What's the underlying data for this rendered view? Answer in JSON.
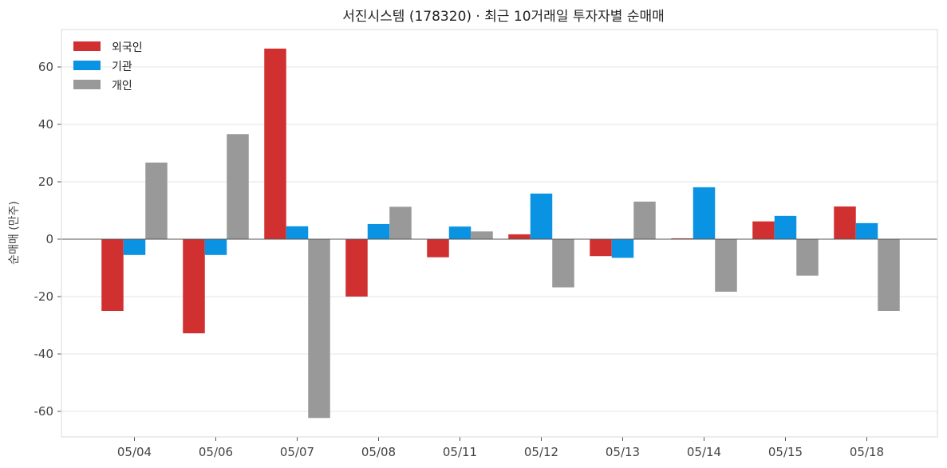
{
  "chart_data": {
    "type": "bar",
    "title": "서진시스템 (178320) · 최근 10거래일 투자자별 순매매",
    "xlabel": "",
    "ylabel": "순매매 (만주)",
    "ylim": [
      -69,
      73
    ],
    "yticks": [
      60,
      40,
      20,
      0,
      -20,
      -40,
      -60
    ],
    "ytick_labels": [
      "60",
      "40",
      "20",
      "0",
      "-20",
      "-40",
      "-60"
    ],
    "grid": true,
    "legend_position": "top-left",
    "categories": [
      "05/04",
      "05/06",
      "05/07",
      "05/08",
      "05/11",
      "05/12",
      "05/13",
      "05/14",
      "05/15",
      "05/18"
    ],
    "series": [
      {
        "name": "외국인",
        "color": "#d03030",
        "values": [
          -25.0,
          -32.8,
          66.4,
          -20.0,
          -6.3,
          1.7,
          -5.9,
          0.3,
          6.2,
          11.4
        ]
      },
      {
        "name": "기관",
        "color": "#0a93e3",
        "values": [
          -5.5,
          -5.5,
          4.5,
          5.3,
          4.4,
          15.9,
          -6.5,
          18.1,
          8.1,
          5.6
        ]
      },
      {
        "name": "개인",
        "color": "#999999",
        "values": [
          26.7,
          36.6,
          -62.3,
          11.3,
          2.7,
          -16.8,
          13.1,
          -18.3,
          -12.7,
          -25.0
        ]
      }
    ]
  }
}
